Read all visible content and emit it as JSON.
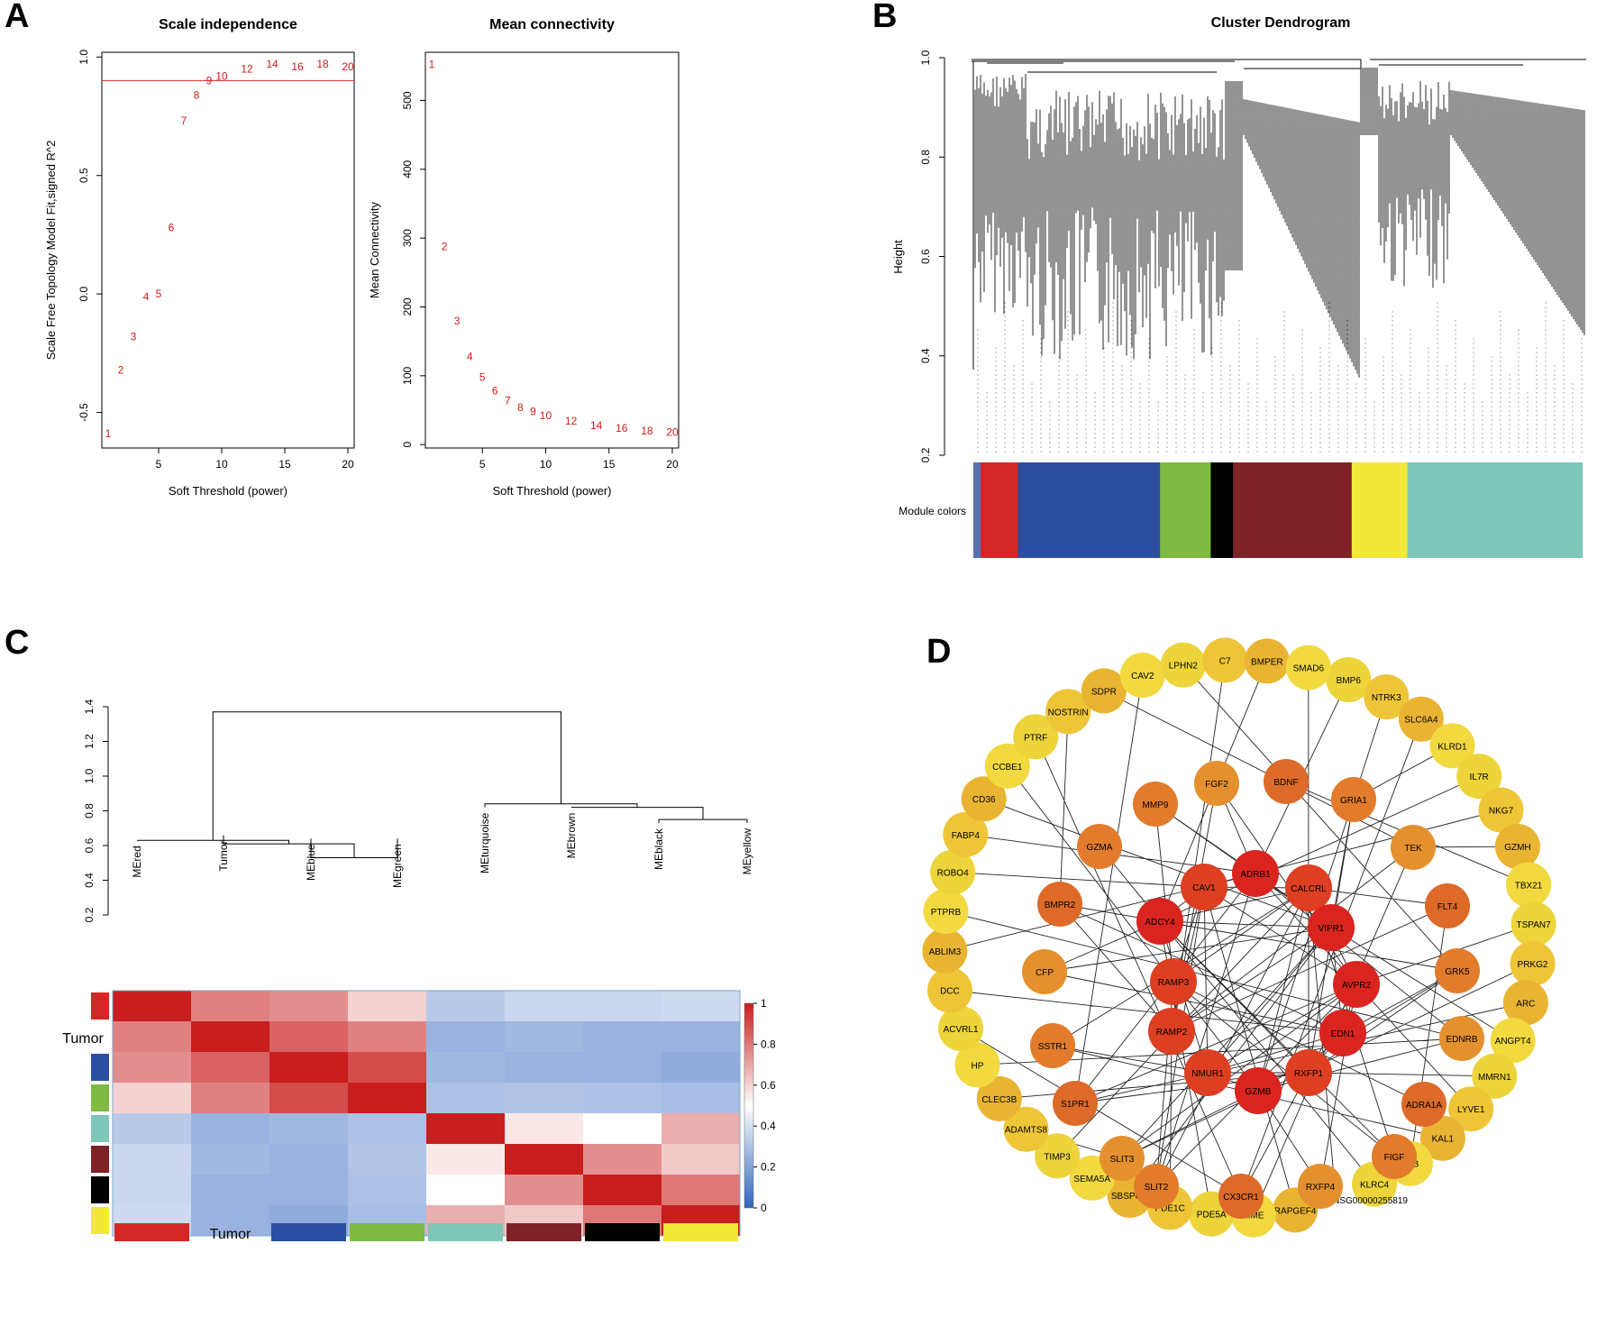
{
  "panels": {
    "A": "A",
    "B": "B",
    "C": "C",
    "D": "D"
  },
  "chart_data": [
    {
      "id": "scale_independence",
      "type": "scatter",
      "title": "Scale independence",
      "xlabel": "Soft Threshold (power)",
      "ylabel": "Scale Free Topology Model Fit,signed R^2",
      "xlim": [
        0.5,
        20.5
      ],
      "ylim": [
        -0.65,
        1.02
      ],
      "xticks": [
        5,
        10,
        15,
        20
      ],
      "yticks": [
        -0.5,
        0.0,
        0.5,
        1.0
      ],
      "threshold_line": 0.9,
      "x": [
        1,
        2,
        3,
        4,
        5,
        6,
        7,
        8,
        9,
        10,
        12,
        14,
        16,
        18,
        20
      ],
      "y": [
        -0.59,
        -0.32,
        -0.18,
        -0.01,
        0.0,
        0.28,
        0.73,
        0.84,
        0.9,
        0.92,
        0.95,
        0.97,
        0.96,
        0.97,
        0.96
      ],
      "labels": [
        "1",
        "2",
        "3",
        "4",
        "5",
        "6",
        "7",
        "8",
        "9",
        "10",
        "12",
        "14",
        "16",
        "18",
        "20"
      ]
    },
    {
      "id": "mean_connectivity",
      "type": "scatter",
      "title": "Mean connectivity",
      "xlabel": "Soft Threshold (power)",
      "ylabel": "Mean Connectivity",
      "xlim": [
        0.5,
        20.5
      ],
      "ylim": [
        -5,
        570
      ],
      "xticks": [
        5,
        10,
        15,
        20
      ],
      "yticks": [
        0,
        100,
        200,
        300,
        400,
        500
      ],
      "x": [
        1,
        2,
        3,
        4,
        5,
        6,
        7,
        8,
        9,
        10,
        12,
        14,
        16,
        18,
        20
      ],
      "y": [
        552,
        288,
        180,
        128,
        98,
        78,
        64,
        54,
        48,
        42,
        34,
        28,
        24,
        20,
        18
      ],
      "labels": [
        "1",
        "2",
        "3",
        "4",
        "5",
        "6",
        "7",
        "8",
        "9",
        "10",
        "12",
        "14",
        "16",
        "18",
        "20"
      ]
    },
    {
      "id": "cluster_dendrogram",
      "type": "dendrogram",
      "title": "Cluster Dendrogram",
      "ylabel": "Height",
      "ylim": [
        0.2,
        1.0
      ],
      "yticks": [
        0.2,
        0.4,
        0.6,
        0.8,
        1.0
      ],
      "module_label": "Module colors",
      "modules": [
        {
          "color": "#5a6fb0",
          "share": 0.012
        },
        {
          "color": "#d32727",
          "share": 0.06
        },
        {
          "color": "#2b4ea1",
          "share": 0.23
        },
        {
          "color": "#7fba42",
          "share": 0.082
        },
        {
          "color": "#000000",
          "share": 0.036
        },
        {
          "color": "#7e2228",
          "share": 0.192
        },
        {
          "color": "#f1e83a",
          "share": 0.09
        },
        {
          "color": "#7dc6b8",
          "share": 0.283
        }
      ]
    },
    {
      "id": "eigengene_dendrogram",
      "type": "dendrogram",
      "ylim": [
        0.2,
        1.4
      ],
      "yticks": [
        0.2,
        0.4,
        0.6,
        0.8,
        1.0,
        1.2,
        1.4
      ],
      "leaves": [
        "MEred",
        "Tumor",
        "MEblue",
        "MEgreen",
        "MEturquoise",
        "MEbrown",
        "MEblack",
        "MEyellow"
      ]
    },
    {
      "id": "eigengene_heatmap",
      "type": "heatmap",
      "rows": [
        "red",
        "Tumor",
        "blue",
        "green",
        "turquoise",
        "brown",
        "black",
        "yellow"
      ],
      "cols": [
        "red",
        "Tumor",
        "blue",
        "green",
        "turquoise",
        "brown",
        "black",
        "yellow"
      ],
      "row_label": "Tumor",
      "col_label": "Tumor",
      "legend_ticks": [
        0,
        0.2,
        0.4,
        0.6,
        0.8,
        1
      ],
      "values": [
        [
          1.0,
          0.78,
          0.75,
          0.6,
          0.33,
          0.37,
          0.37,
          0.38
        ],
        [
          0.78,
          1.0,
          0.85,
          0.78,
          0.25,
          0.27,
          0.25,
          0.25
        ],
        [
          0.75,
          0.85,
          1.0,
          0.9,
          0.27,
          0.25,
          0.25,
          0.23
        ],
        [
          0.6,
          0.78,
          0.9,
          1.0,
          0.3,
          0.31,
          0.3,
          0.29
        ],
        [
          0.33,
          0.25,
          0.27,
          0.3,
          1.0,
          0.55,
          0.5,
          0.68
        ],
        [
          0.37,
          0.27,
          0.25,
          0.31,
          0.55,
          1.0,
          0.75,
          0.62
        ],
        [
          0.37,
          0.25,
          0.25,
          0.3,
          0.5,
          0.75,
          1.0,
          0.8
        ],
        [
          0.38,
          0.25,
          0.23,
          0.29,
          0.68,
          0.62,
          0.8,
          1.0
        ]
      ],
      "module_colors": [
        "#d32727",
        "#ffffff",
        "#2b4ea1",
        "#7fba42",
        "#7dc6b8",
        "#7e2228",
        "#000000",
        "#f1e83a"
      ]
    },
    {
      "id": "hub_network",
      "type": "network",
      "hub_nodes": [
        "ADCY4",
        "CAV1",
        "ADRB1",
        "CALCRL",
        "VIPR1",
        "RAMP3",
        "AVPR2",
        "RAMP2",
        "EDN1",
        "NMUR1",
        "GZMB",
        "RXFP1"
      ],
      "middle_nodes": [
        "MMP9",
        "FGF2",
        "BDNF",
        "GRIA1",
        "TEK",
        "FLT4",
        "GRK5",
        "EDNRB",
        "ADRA1A",
        "FIGF",
        "RXFP4",
        "CX3CR1",
        "SLIT2",
        "SLIT3",
        "S1PR1",
        "SSTR1",
        "CFP",
        "BMPR2",
        "GZMA"
      ],
      "outer_nodes": [
        "BMP6",
        "NTRK3",
        "SLC6A4",
        "KLRD1",
        "IL7R",
        "NKG7",
        "GZMH",
        "TBX21",
        "TSPAN7",
        "PRKG2",
        "ARC",
        "ANGPT4",
        "MMRN1",
        "LYVE1",
        "KAL1",
        "KLB",
        "KLRC4",
        "ENSG00000255819",
        "RAPGEF4",
        "MME",
        "PDE5A",
        "PDE1C",
        "SBSPON",
        "SEMA5A",
        "TIMP3",
        "ADAMTS8",
        "CLEC3B",
        "HP",
        "ACVRL1",
        "DCC",
        "ABLIM3",
        "PTPRB",
        "ROBO4",
        "FABP4",
        "CD36",
        "CCBE1",
        "PTRF",
        "NOSTRIN",
        "SDPR",
        "CAV2",
        "LPHN2",
        "C7",
        "BMPER",
        "SMAD6"
      ]
    }
  ]
}
